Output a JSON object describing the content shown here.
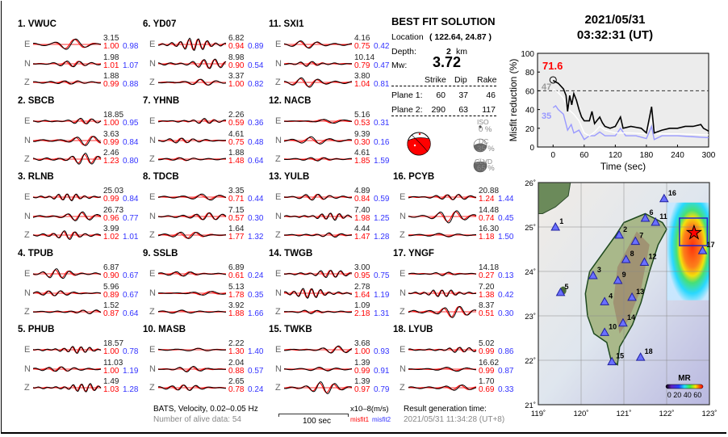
{
  "stations": [
    {
      "label": "1.  VWUC",
      "comps": [
        {
          "c": "E",
          "amp": "3.15",
          "m1": "1.00",
          "m2": "0.98"
        },
        {
          "c": "N",
          "amp": "1.98",
          "m1": "1.01",
          "m2": "1.07"
        },
        {
          "c": "Z",
          "amp": "1.88",
          "m1": "0.99",
          "m2": "0.88"
        }
      ]
    },
    {
      "label": "2.  SBCB",
      "comps": [
        {
          "c": "E",
          "amp": "18.85",
          "m1": "1.00",
          "m2": "0.95"
        },
        {
          "c": "N",
          "amp": "3.63",
          "m1": "0.99",
          "m2": "0.84"
        },
        {
          "c": "Z",
          "amp": "2.46",
          "m1": "1.23",
          "m2": "0.80"
        }
      ]
    },
    {
      "label": "3.  RLNB",
      "comps": [
        {
          "c": "E",
          "amp": "25.03",
          "m1": "0.99",
          "m2": "0.84"
        },
        {
          "c": "N",
          "amp": "26.73",
          "m1": "0.96",
          "m2": "0.77"
        },
        {
          "c": "Z",
          "amp": "3.99",
          "m1": "1.02",
          "m2": "1.01"
        }
      ]
    },
    {
      "label": "4.  TPUB",
      "comps": [
        {
          "c": "E",
          "amp": "6.87",
          "m1": "0.90",
          "m2": "0.67"
        },
        {
          "c": "N",
          "amp": "5.96",
          "m1": "0.89",
          "m2": "0.67"
        },
        {
          "c": "Z",
          "amp": "1.52",
          "m1": "0.87",
          "m2": "0.64"
        }
      ]
    },
    {
      "label": "5.  PHUB",
      "comps": [
        {
          "c": "E",
          "amp": "18.57",
          "m1": "1.00",
          "m2": "0.78"
        },
        {
          "c": "N",
          "amp": "11.03",
          "m1": "1.00",
          "m2": "1.19"
        },
        {
          "c": "Z",
          "amp": "1.49",
          "m1": "1.03",
          "m2": "1.28"
        }
      ]
    },
    {
      "label": "6.  YD07",
      "comps": [
        {
          "c": "E",
          "amp": "6.82",
          "m1": "0.94",
          "m2": "0.89"
        },
        {
          "c": "N",
          "amp": "8.98",
          "m1": "0.90",
          "m2": "0.54"
        },
        {
          "c": "Z",
          "amp": "3.37",
          "m1": "1.00",
          "m2": "0.82"
        }
      ]
    },
    {
      "label": "7.  YHNB",
      "comps": [
        {
          "c": "E",
          "amp": "2.26",
          "m1": "0.59",
          "m2": "0.36"
        },
        {
          "c": "N",
          "amp": "4.61",
          "m1": "0.75",
          "m2": "0.48"
        },
        {
          "c": "Z",
          "amp": "1.88",
          "m1": "1.48",
          "m2": "0.64"
        }
      ]
    },
    {
      "label": "8.  TDCB",
      "comps": [
        {
          "c": "E",
          "amp": "3.35",
          "m1": "0.71",
          "m2": "0.44"
        },
        {
          "c": "N",
          "amp": "7.15",
          "m1": "0.57",
          "m2": "0.30"
        },
        {
          "c": "Z",
          "amp": "1.64",
          "m1": "1.77",
          "m2": "1.32"
        }
      ]
    },
    {
      "label": "9.  SSLB",
      "comps": [
        {
          "c": "E",
          "amp": "6.89",
          "m1": "0.61",
          "m2": "0.24"
        },
        {
          "c": "N",
          "amp": "5.13",
          "m1": "1.78",
          "m2": "0.35"
        },
        {
          "c": "Z",
          "amp": "3.92",
          "m1": "1.88",
          "m2": "1.66"
        }
      ]
    },
    {
      "label": "10. MASB",
      "comps": [
        {
          "c": "E",
          "amp": "2.22",
          "m1": "1.30",
          "m2": "1.40"
        },
        {
          "c": "N",
          "amp": "2.04",
          "m1": "0.88",
          "m2": "0.57"
        },
        {
          "c": "Z",
          "amp": "2.65",
          "m1": "0.78",
          "m2": "0.24"
        }
      ]
    },
    {
      "label": "11. SXI1",
      "comps": [
        {
          "c": "E",
          "amp": "4.16",
          "m1": "0.75",
          "m2": "0.42"
        },
        {
          "c": "N",
          "amp": "10.14",
          "m1": "0.79",
          "m2": "0.47"
        },
        {
          "c": "Z",
          "amp": "3.80",
          "m1": "1.04",
          "m2": "0.81"
        }
      ]
    },
    {
      "label": "12. NACB",
      "comps": [
        {
          "c": "E",
          "amp": "5.16",
          "m1": "0.53",
          "m2": "0.31"
        },
        {
          "c": "N",
          "amp": "9.39",
          "m1": "0.30",
          "m2": "0.16"
        },
        {
          "c": "Z",
          "amp": "4.61",
          "m1": "1.85",
          "m2": "1.59"
        }
      ]
    },
    {
      "label": "13. YULB",
      "comps": [
        {
          "c": "E",
          "amp": "4.89",
          "m1": "0.84",
          "m2": "0.59"
        },
        {
          "c": "N",
          "amp": "7.40",
          "m1": "1.98",
          "m2": "1.25"
        },
        {
          "c": "Z",
          "amp": "4.44",
          "m1": "1.47",
          "m2": "1.28"
        }
      ]
    },
    {
      "label": "14. TWGB",
      "comps": [
        {
          "c": "E",
          "amp": "3.00",
          "m1": "0.95",
          "m2": "0.75"
        },
        {
          "c": "N",
          "amp": "2.78",
          "m1": "1.64",
          "m2": "1.19"
        },
        {
          "c": "Z",
          "amp": "1.09",
          "m1": "2.18",
          "m2": "1.31"
        }
      ]
    },
    {
      "label": "15. TWKB",
      "comps": [
        {
          "c": "E",
          "amp": "3.68",
          "m1": "1.00",
          "m2": "0.93"
        },
        {
          "c": "N",
          "amp": "1.39",
          "m1": "0.99",
          "m2": "0.91"
        },
        {
          "c": "Z",
          "amp": "1.39",
          "m1": "0.97",
          "m2": "0.79"
        }
      ]
    },
    {
      "label": "16. PCYB",
      "comps": [
        {
          "c": "E",
          "amp": "20.88",
          "m1": "1.24",
          "m2": "1.44"
        },
        {
          "c": "N",
          "amp": "14.48",
          "m1": "0.74",
          "m2": "0.45"
        },
        {
          "c": "Z",
          "amp": "16.30",
          "m1": "1.18",
          "m2": "1.50"
        }
      ]
    },
    {
      "label": "17. YNGF",
      "comps": [
        {
          "c": "E",
          "amp": "14.18",
          "m1": "0.27",
          "m2": "0.13"
        },
        {
          "c": "N",
          "amp": "7.20",
          "m1": "1.38",
          "m2": "0.42"
        },
        {
          "c": "Z",
          "amp": "8.37",
          "m1": "0.51",
          "m2": "0.30"
        }
      ]
    },
    {
      "label": "18. LYUB",
      "comps": [
        {
          "c": "E",
          "amp": "5.02",
          "m1": "0.99",
          "m2": "0.86"
        },
        {
          "c": "N",
          "amp": "16.62",
          "m1": "0.99",
          "m2": "0.87"
        },
        {
          "c": "Z",
          "amp": "1.70",
          "m1": "0.69",
          "m2": "0.33"
        }
      ]
    }
  ],
  "solution": {
    "title": "BEST FIT SOLUTION",
    "location_label": "Location",
    "location_value": "( 122.64,  24.87 )",
    "depth_label": "Depth:",
    "depth_value": "2",
    "depth_unit": "km",
    "mw_label": "Mw:",
    "mw_value": "3.72",
    "headers": [
      "Strike",
      "Dip",
      "Rake"
    ],
    "planes": [
      {
        "label": "Plane 1:",
        "strike": "60",
        "dip": "37",
        "rake": "46"
      },
      {
        "label": "Plane 2:",
        "strike": "290",
        "dip": "63",
        "rake": "117"
      }
    ],
    "iso_label": "ISO",
    "iso_value": "0 %",
    "dc_label": "DC",
    "dc_value": "35 %",
    "clvd_label": "CLVD",
    "clvd_value": "65 %"
  },
  "event": {
    "date": "2021/05/31",
    "time": "03:32:31  (UT)"
  },
  "footer": {
    "filter": "BATS, Velocity, 0.02–0.05 Hz",
    "alive": "Number of alive data: 54",
    "scale": "100 sec",
    "units": "x10–8(m/s)",
    "misfit1": "misfit1",
    "misfit2": "misfit2",
    "gen_label": "Result generation time:",
    "gen_value": "2021/05/31 11:34:28 (UT+8)"
  },
  "colors": {
    "observed": "#000000",
    "synthetic": "#ff0000",
    "misfit1": "#ff0000",
    "misfit2": "#3333ff",
    "accent": "#ff0000"
  },
  "chart_data": {
    "type": "line",
    "xlabel": "Time (sec)",
    "ylabel": "Misfit reduction (%)",
    "xlim": [
      -30,
      300
    ],
    "ylim": [
      0,
      100
    ],
    "xticks": [
      0,
      60,
      120,
      180,
      240,
      300
    ],
    "yticks": [
      0,
      20,
      40,
      60,
      80,
      100
    ],
    "reference_line": 60,
    "annotations": {
      "best": "71.6",
      "gray": "47",
      "blue": "35"
    },
    "series": [
      {
        "color": "#000000",
        "x": [
          0,
          10,
          20,
          25,
          28,
          32,
          36,
          40,
          45,
          50,
          55,
          60,
          70,
          75,
          80,
          90,
          95,
          100,
          110,
          120,
          130,
          135,
          150,
          160,
          170,
          180,
          190,
          195,
          210,
          225,
          240,
          255,
          270,
          285,
          290,
          300
        ],
        "y": [
          71,
          68,
          62,
          55,
          38,
          55,
          45,
          57,
          50,
          40,
          32,
          28,
          28,
          38,
          25,
          32,
          26,
          22,
          20,
          22,
          32,
          20,
          22,
          21,
          20,
          15,
          43,
          15,
          18,
          20,
          20,
          22,
          22,
          24,
          20,
          17
        ]
      },
      {
        "color": "#ffffff",
        "x": [
          0,
          10,
          20,
          30,
          40,
          50,
          60,
          70,
          80,
          90,
          100,
          120,
          150,
          180,
          190,
          200,
          240,
          300
        ],
        "y": [
          62,
          58,
          52,
          40,
          35,
          28,
          15,
          12,
          16,
          22,
          18,
          15,
          15,
          14,
          28,
          14,
          14,
          13
        ]
      },
      {
        "color": "#9999ff",
        "x": [
          0,
          5,
          10,
          20,
          28,
          35,
          40,
          50,
          60,
          70,
          80,
          90,
          100,
          110,
          120,
          130,
          140,
          160,
          180,
          190,
          195,
          210,
          240,
          270,
          300
        ],
        "y": [
          42,
          44,
          40,
          35,
          18,
          24,
          15,
          18,
          8,
          12,
          12,
          16,
          12,
          12,
          12,
          20,
          12,
          12,
          9,
          22,
          8,
          12,
          12,
          11,
          10
        ]
      }
    ]
  },
  "map": {
    "xticks": [
      "119˚",
      "120˚",
      "121˚",
      "122˚",
      "123˚"
    ],
    "yticks": [
      "26˚",
      "25˚",
      "24˚",
      "23˚",
      "22˚",
      "21˚"
    ],
    "colorbar_title": "MR",
    "colorbar_labels": "0 20 40 60",
    "epicenter": {
      "lon": 122.64,
      "lat": 24.87
    },
    "stations": [
      {
        "n": "1",
        "lon": 119.4,
        "lat": 25.0
      },
      {
        "n": "2",
        "lon": 120.89,
        "lat": 24.82
      },
      {
        "n": "3",
        "lon": 120.28,
        "lat": 23.91
      },
      {
        "n": "4",
        "lon": 120.55,
        "lat": 23.32
      },
      {
        "n": "5",
        "lon": 119.52,
        "lat": 23.53
      },
      {
        "n": "6",
        "lon": 121.5,
        "lat": 25.2
      },
      {
        "n": "7",
        "lon": 121.27,
        "lat": 24.68
      },
      {
        "n": "8",
        "lon": 121.05,
        "lat": 24.27
      },
      {
        "n": "9",
        "lon": 120.86,
        "lat": 23.8
      },
      {
        "n": "10",
        "lon": 120.55,
        "lat": 22.63
      },
      {
        "n": "11",
        "lon": 121.74,
        "lat": 25.11
      },
      {
        "n": "12",
        "lon": 121.48,
        "lat": 24.21
      },
      {
        "n": "13",
        "lon": 121.19,
        "lat": 23.42
      },
      {
        "n": "14",
        "lon": 120.98,
        "lat": 22.84
      },
      {
        "n": "15",
        "lon": 120.72,
        "lat": 21.97
      },
      {
        "n": "16",
        "lon": 121.94,
        "lat": 25.64
      },
      {
        "n": "17",
        "lon": 122.84,
        "lat": 24.47
      },
      {
        "n": "18",
        "lon": 121.39,
        "lat": 22.07
      }
    ]
  }
}
